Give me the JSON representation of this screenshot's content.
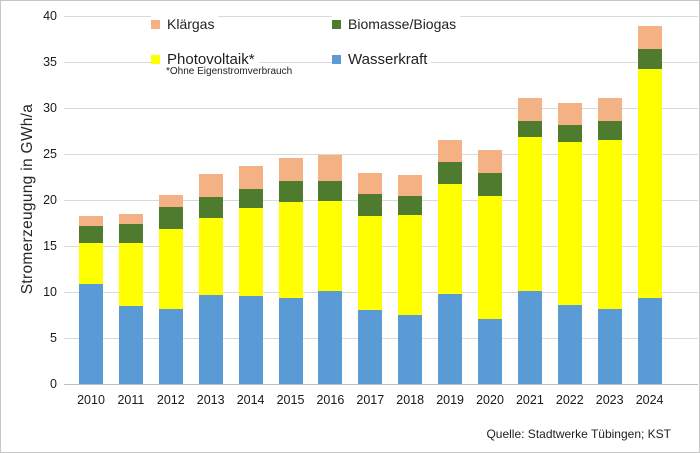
{
  "chart_data": {
    "type": "bar",
    "stacked": true,
    "ylabel": "Stromerzeugung in GWh/a",
    "ylim": [
      0,
      40
    ],
    "yticks": [
      0,
      5,
      10,
      15,
      20,
      25,
      30,
      35,
      40
    ],
    "grid": "horizontal",
    "categories": [
      "2010",
      "2011",
      "2012",
      "2013",
      "2014",
      "2015",
      "2016",
      "2017",
      "2018",
      "2019",
      "2020",
      "2021",
      "2022",
      "2023",
      "2024"
    ],
    "series": [
      {
        "name": "Wasserkraft",
        "color": "#5b9bd5",
        "values": [
          10.9,
          8.5,
          8.1,
          9.7,
          9.6,
          9.4,
          10.1,
          8.0,
          7.5,
          9.8,
          7.1,
          10.1,
          8.6,
          8.1,
          9.3
        ]
      },
      {
        "name": "Photovoltaik*",
        "color": "#ffff00",
        "values": [
          4.4,
          6.8,
          8.8,
          8.3,
          9.5,
          10.4,
          9.8,
          10.3,
          10.9,
          11.9,
          13.3,
          16.8,
          17.7,
          18.4,
          24.9
        ]
      },
      {
        "name": "Biomasse/Biogas",
        "color": "#4e7b2e",
        "values": [
          1.9,
          2.1,
          2.3,
          2.3,
          2.1,
          2.3,
          2.2,
          2.3,
          2.0,
          2.4,
          2.5,
          1.7,
          1.9,
          2.1,
          2.2
        ]
      },
      {
        "name": "Klärgas",
        "color": "#f4b183",
        "values": [
          1.1,
          1.1,
          1.4,
          2.5,
          2.5,
          2.5,
          2.8,
          2.3,
          2.3,
          2.4,
          2.5,
          2.5,
          2.3,
          2.5,
          2.5
        ]
      }
    ],
    "totals": [
      18.3,
      18.5,
      20.6,
      22.8,
      23.7,
      24.6,
      24.9,
      22.9,
      22.7,
      26.5,
      25.4,
      31.1,
      30.5,
      31.1,
      38.9
    ],
    "legend": {
      "position": "inside-top",
      "entries": [
        {
          "label": "Klärgas",
          "color": "#f4b183"
        },
        {
          "label": "Biomasse/Biogas",
          "color": "#4e7b2e"
        },
        {
          "label": "Photovoltaik*",
          "color": "#ffff00"
        },
        {
          "label": "Wasserkraft",
          "color": "#5b9bd5"
        }
      ],
      "footnote": "*Ohne Eigenstromverbrauch"
    },
    "source": "Quelle: Stadtwerke Tübingen; KST"
  }
}
